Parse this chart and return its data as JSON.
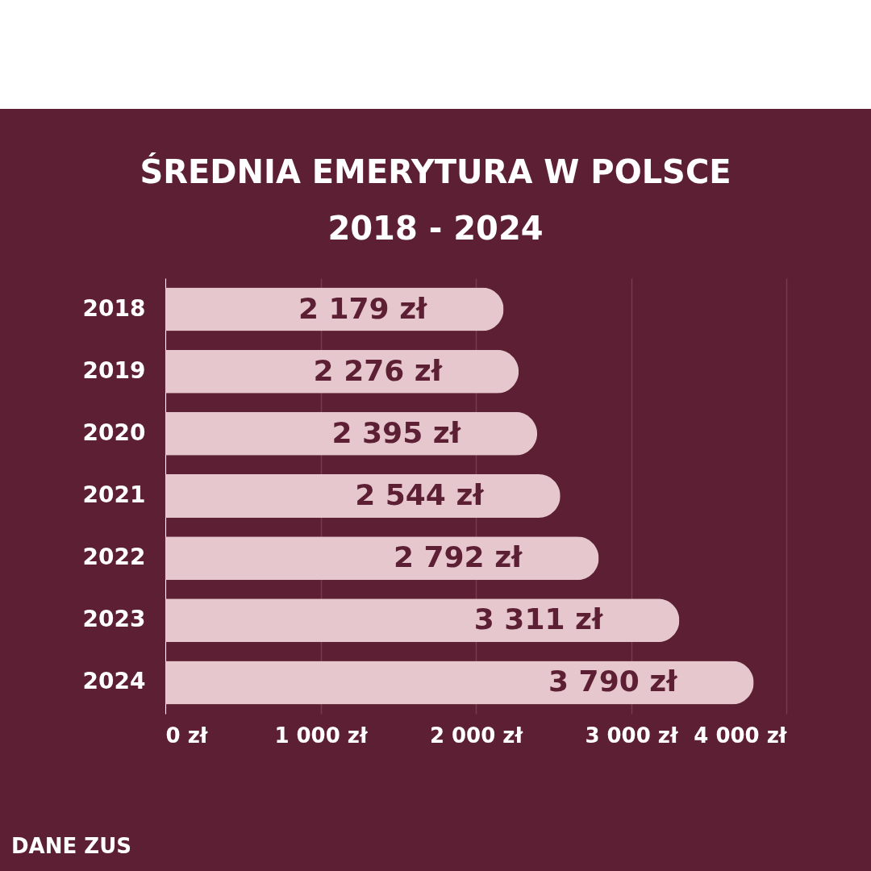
{
  "chart_data": {
    "type": "bar",
    "orientation": "horizontal",
    "title": "ŚREDNIA EMERYTURA W POLSCE",
    "subtitle": "2018 - 2024",
    "categories": [
      "2018",
      "2019",
      "2020",
      "2021",
      "2022",
      "2023",
      "2024"
    ],
    "values": [
      2179,
      2276,
      2395,
      2544,
      2792,
      3311,
      3790
    ],
    "value_labels": [
      "2 179 zł",
      "2 276 zł",
      "2 395 zł",
      "2 544 zł",
      "2 792 zł",
      "3 311 zł",
      "3 790 zł"
    ],
    "color": "#e6c7ce",
    "xlim": [
      0,
      4000
    ],
    "xticks": [
      {
        "value": 0,
        "label": "0 zł"
      },
      {
        "value": 1000,
        "label": "1 000 zł"
      },
      {
        "value": 2000,
        "label": "2 000 zł"
      },
      {
        "value": 3000,
        "label": "3 000 zł"
      },
      {
        "value": 4000,
        "label": "4 000 zł"
      }
    ],
    "grid": "x",
    "annotations": [
      "DANE ZUS"
    ]
  }
}
